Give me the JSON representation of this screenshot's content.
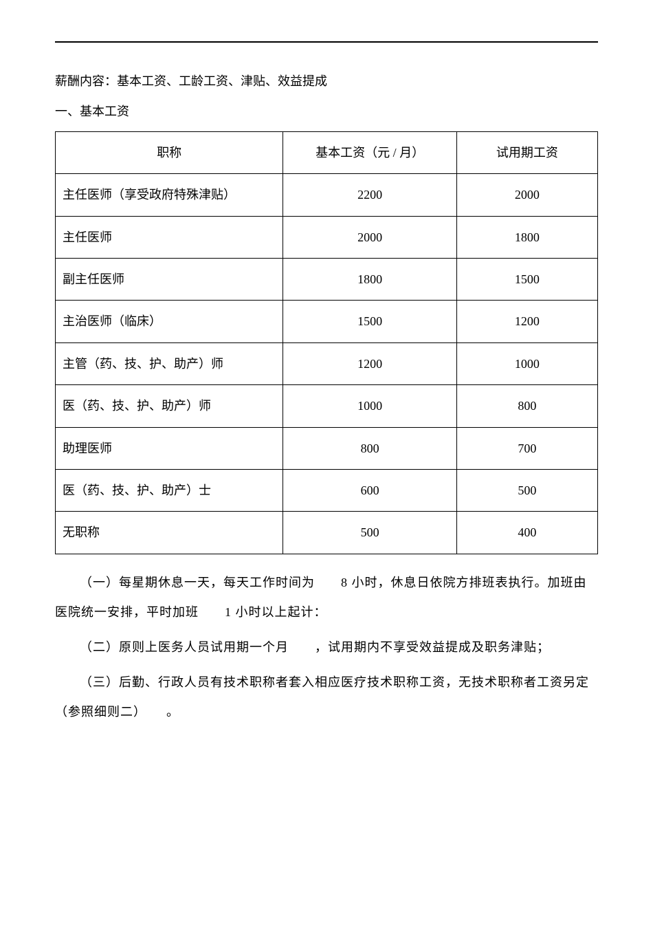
{
  "intro": "薪酬内容：基本工资、工龄工资、津贴、效益提成",
  "section_title": "一、基本工资",
  "table": {
    "columns": [
      "职称",
      "基本工资（元  / 月）",
      "试用期工资"
    ],
    "col_widths": [
      "42%",
      "32%",
      "26%"
    ],
    "rows": [
      {
        "title": "主任医师（享受政府特殊津贴）",
        "base": "2200",
        "trial": "2000"
      },
      {
        "title": "主任医师",
        "base": "2000",
        "trial": "1800"
      },
      {
        "title": "副主任医师",
        "base": "1800",
        "trial": "1500"
      },
      {
        "title": "主治医师（临床）",
        "base": "1500",
        "trial": "1200"
      },
      {
        "title": "主管（药、技、护、助产）师",
        "base": "1200",
        "trial": "1000"
      },
      {
        "title": "医（药、技、护、助产）师",
        "base": "1000",
        "trial": "800"
      },
      {
        "title": "助理医师",
        "base": "800",
        "trial": "700"
      },
      {
        "title": "医（药、技、护、助产）士",
        "base": "600",
        "trial": "500"
      },
      {
        "title": " 无职称",
        "base": "500",
        "trial": "400"
      }
    ]
  },
  "paragraphs": [
    "（一）每星期休息一天，每天工作时间为　　8 小时，休息日依院方排班表执行。加班由医院统一安排，平时加班　　1 小时以上起计：",
    "（二）原则上医务人员试用期一个月　　，试用期内不享受效益提成及职务津贴；",
    "（三）后勤、行政人员有技术职称者套入相应医疗技术职称工资，无技术职称者工资另定（参照细则二）　　。"
  ]
}
